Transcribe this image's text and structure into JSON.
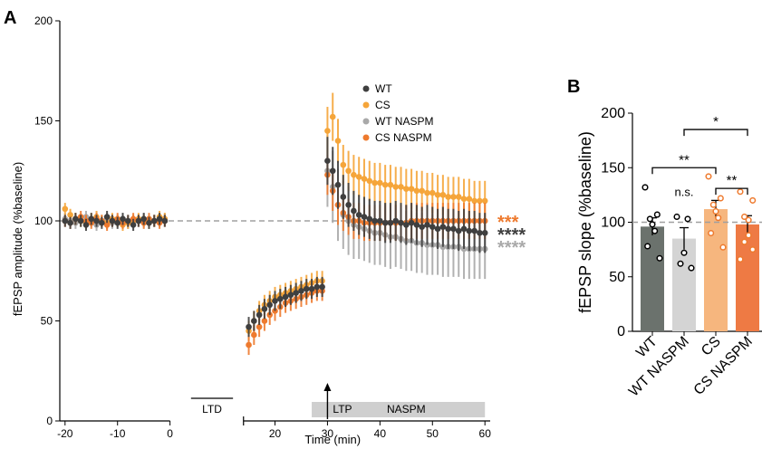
{
  "panel_a_letter": "A",
  "panel_b_letter": "B",
  "colors": {
    "WT": "#3f3f3f",
    "CS": "#f5a53a",
    "WT NASPM": "#a9a9a9",
    "CS NASPM": "#ee7a2e",
    "baseline": "#a0a0a0",
    "naspm_bar": "#cfcfcf",
    "bar_WT": "#6b726d",
    "bar_WT NASPM": "#d4d4d4",
    "bar_CS": "#f6b67e",
    "bar_CS NASPM": "#ee7a44"
  },
  "chart_data": [
    {
      "type": "scatter",
      "panel": "A",
      "xlabel": "Time (min)",
      "ylabel": "fEPSP amplitude (%baseline)",
      "xlim": [
        -21,
        61
      ],
      "ylim": [
        0,
        200
      ],
      "xticks": [
        -20,
        -10,
        0,
        20,
        30,
        40,
        50,
        60
      ],
      "yticks": [
        0,
        50,
        100,
        150,
        200
      ],
      "baseline": 100,
      "legend_position": "top-right",
      "legend": [
        "WT",
        "CS",
        "WT NASPM",
        "CS NASPM"
      ],
      "labels": {
        "ltd": "LTD",
        "ltp": "LTP",
        "naspm": "NASPM",
        "x_ticks_text": [
          "-20",
          "-10",
          "0",
          "20",
          "30",
          "40",
          "50",
          "60"
        ],
        "y_ticks_text": [
          "0",
          "50",
          "100",
          "150",
          "200"
        ]
      },
      "significance": [
        {
          "text": "***",
          "series": "CS NASPM",
          "y": 105
        },
        {
          "text": "****",
          "series": "WT",
          "y": 99
        },
        {
          "text": "****",
          "series": "WT NASPM",
          "y": 92
        }
      ],
      "series": [
        {
          "name": "WT",
          "x": [
            -20,
            -19,
            -18,
            -17,
            -16,
            -15,
            -14,
            -13,
            -12,
            -11,
            -10,
            -9,
            -8,
            -7,
            -6,
            -5,
            -4,
            -3,
            -2,
            -1,
            15,
            16,
            17,
            18,
            19,
            20,
            21,
            22,
            23,
            24,
            25,
            26,
            27,
            28,
            29,
            30,
            31,
            32,
            33,
            34,
            35,
            36,
            37,
            38,
            39,
            40,
            41,
            42,
            43,
            44,
            45,
            46,
            47,
            48,
            49,
            50,
            51,
            52,
            53,
            54,
            55,
            56,
            57,
            58,
            59,
            60
          ],
          "y": [
            100,
            99,
            101,
            100,
            98,
            101,
            100,
            99,
            102,
            100,
            99,
            101,
            100,
            98,
            100,
            101,
            99,
            100,
            101,
            100,
            47,
            50,
            53,
            56,
            58,
            60,
            61,
            62,
            63,
            64,
            65,
            66,
            66,
            67,
            67,
            130,
            125,
            118,
            112,
            108,
            105,
            103,
            102,
            101,
            100,
            100,
            99,
            99,
            100,
            99,
            98,
            99,
            98,
            97,
            98,
            97,
            96,
            97,
            96,
            96,
            95,
            96,
            95,
            95,
            94,
            94
          ],
          "err": [
            3,
            3,
            3,
            3,
            3,
            3,
            3,
            3,
            3,
            3,
            3,
            3,
            3,
            3,
            3,
            3,
            3,
            3,
            3,
            3,
            5,
            5,
            5,
            5,
            5,
            5,
            5,
            5,
            5,
            5,
            5,
            5,
            5,
            5,
            5,
            12,
            12,
            12,
            11,
            11,
            10,
            10,
            10,
            10,
            10,
            10,
            10,
            10,
            10,
            10,
            10,
            10,
            10,
            10,
            10,
            10,
            10,
            10,
            10,
            10,
            10,
            10,
            10,
            10,
            10,
            10
          ]
        },
        {
          "name": "CS",
          "x": [
            -20,
            -19,
            -18,
            -17,
            -16,
            -15,
            -14,
            -13,
            -12,
            -11,
            -10,
            -9,
            -8,
            -7,
            -6,
            -5,
            -4,
            -3,
            -2,
            -1,
            15,
            16,
            17,
            18,
            19,
            20,
            21,
            22,
            23,
            24,
            25,
            26,
            27,
            28,
            29,
            30,
            31,
            32,
            33,
            34,
            35,
            36,
            37,
            38,
            39,
            40,
            41,
            42,
            43,
            44,
            45,
            46,
            47,
            48,
            49,
            50,
            51,
            52,
            53,
            54,
            55,
            56,
            57,
            58,
            59,
            60
          ],
          "y": [
            106,
            103,
            101,
            100,
            99,
            101,
            102,
            100,
            99,
            101,
            100,
            98,
            99,
            100,
            101,
            100,
            99,
            100,
            102,
            101,
            45,
            50,
            55,
            58,
            60,
            62,
            63,
            64,
            65,
            66,
            67,
            68,
            69,
            70,
            70,
            145,
            152,
            140,
            128,
            125,
            123,
            122,
            121,
            120,
            119,
            119,
            118,
            118,
            117,
            117,
            116,
            116,
            115,
            115,
            114,
            114,
            113,
            113,
            112,
            112,
            112,
            111,
            111,
            110,
            110,
            110
          ],
          "err": [
            3,
            3,
            3,
            3,
            3,
            3,
            3,
            3,
            3,
            3,
            3,
            3,
            3,
            3,
            3,
            3,
            3,
            3,
            3,
            3,
            5,
            5,
            5,
            5,
            5,
            5,
            5,
            5,
            5,
            5,
            5,
            5,
            5,
            5,
            5,
            12,
            12,
            11,
            10,
            10,
            10,
            10,
            10,
            10,
            10,
            10,
            10,
            10,
            10,
            10,
            10,
            10,
            10,
            10,
            10,
            10,
            10,
            10,
            10,
            10,
            10,
            10,
            10,
            10,
            10,
            10
          ]
        },
        {
          "name": "WT NASPM",
          "x": [
            -20,
            -19,
            -18,
            -17,
            -16,
            -15,
            -14,
            -13,
            -12,
            -11,
            -10,
            -9,
            -8,
            -7,
            -6,
            -5,
            -4,
            -3,
            -2,
            -1,
            30,
            31,
            32,
            33,
            34,
            35,
            36,
            37,
            38,
            39,
            40,
            41,
            42,
            43,
            44,
            45,
            46,
            47,
            48,
            49,
            50,
            51,
            52,
            53,
            54,
            55,
            56,
            57,
            58,
            59,
            60
          ],
          "y": [
            101,
            100,
            99,
            100,
            102,
            100,
            98,
            100,
            101,
            99,
            100,
            101,
            99,
            100,
            100,
            101,
            99,
            100,
            100,
            101,
            125,
            117,
            108,
            103,
            100,
            98,
            97,
            96,
            95,
            94,
            94,
            93,
            92,
            92,
            91,
            90,
            90,
            89,
            89,
            88,
            88,
            88,
            87,
            87,
            87,
            87,
            86,
            86,
            86,
            86,
            86
          ],
          "err": [
            3,
            3,
            3,
            3,
            3,
            3,
            3,
            3,
            3,
            3,
            3,
            3,
            3,
            3,
            3,
            3,
            3,
            3,
            3,
            3,
            18,
            18,
            18,
            17,
            17,
            17,
            16,
            16,
            16,
            16,
            16,
            16,
            16,
            15,
            15,
            15,
            15,
            15,
            15,
            15,
            15,
            15,
            15,
            15,
            15,
            15,
            15,
            15,
            15,
            15,
            15
          ]
        },
        {
          "name": "CS NASPM",
          "x": [
            -20,
            -19,
            -18,
            -17,
            -16,
            -15,
            -14,
            -13,
            -12,
            -11,
            -10,
            -9,
            -8,
            -7,
            -6,
            -5,
            -4,
            -3,
            -2,
            -1,
            15,
            16,
            17,
            18,
            19,
            20,
            21,
            22,
            23,
            24,
            25,
            26,
            27,
            28,
            29,
            30,
            31,
            32,
            33,
            34,
            35,
            36,
            37,
            38,
            39,
            40,
            41,
            42,
            43,
            44,
            45,
            46,
            47,
            48,
            49,
            50,
            51,
            52,
            53,
            54,
            55,
            56,
            57,
            58,
            59,
            60
          ],
          "y": [
            100,
            99,
            101,
            102,
            100,
            99,
            101,
            100,
            98,
            100,
            101,
            99,
            100,
            101,
            100,
            99,
            101,
            100,
            99,
            100,
            38,
            43,
            47,
            50,
            53,
            55,
            57,
            59,
            60,
            61,
            62,
            63,
            64,
            65,
            65,
            123,
            115,
            108,
            104,
            102,
            100,
            100,
            99,
            99,
            99,
            99,
            99,
            99,
            99,
            99,
            99,
            100,
            100,
            100,
            100,
            100,
            100,
            100,
            100,
            100,
            100,
            100,
            100,
            100,
            100,
            100
          ],
          "err": [
            3,
            3,
            3,
            3,
            3,
            3,
            3,
            3,
            3,
            3,
            3,
            3,
            3,
            3,
            3,
            3,
            3,
            3,
            3,
            3,
            5,
            5,
            5,
            5,
            5,
            5,
            5,
            5,
            5,
            5,
            5,
            5,
            5,
            5,
            5,
            10,
            10,
            10,
            9,
            9,
            9,
            9,
            9,
            9,
            9,
            9,
            9,
            9,
            9,
            9,
            9,
            9,
            9,
            9,
            9,
            9,
            9,
            9,
            9,
            9,
            9,
            9,
            9,
            9,
            9,
            9
          ]
        }
      ]
    },
    {
      "type": "bar",
      "panel": "B",
      "ylabel": "fEPSP slope (%baseline)",
      "ylim": [
        0,
        200
      ],
      "yticks": [
        0,
        50,
        100,
        150,
        200
      ],
      "yticks_text": [
        "0",
        "50",
        "100",
        "150",
        "200"
      ],
      "baseline": 100,
      "categories": [
        "WT",
        "WT NASPM",
        "CS",
        "CS NASPM"
      ],
      "values": [
        96,
        85,
        112,
        98
      ],
      "errors": [
        8,
        10,
        8,
        8
      ],
      "points": [
        [
          132,
          107,
          103,
          98,
          92,
          78,
          67
        ],
        [
          105,
          103,
          72,
          62,
          58
        ],
        [
          142,
          122,
          116,
          110,
          104,
          90,
          77
        ],
        [
          128,
          120,
          105,
          102,
          88,
          82,
          75,
          66
        ]
      ],
      "comparisons": [
        {
          "from": 0,
          "to": 2,
          "label": "**",
          "y": 150
        },
        {
          "from": 1,
          "to": 3,
          "label": "*",
          "y": 185
        },
        {
          "from": 2,
          "to": 3,
          "label": "**",
          "y": 131
        }
      ],
      "annotation": {
        "label": "n.s.",
        "category": 1,
        "y": 124
      }
    }
  ]
}
